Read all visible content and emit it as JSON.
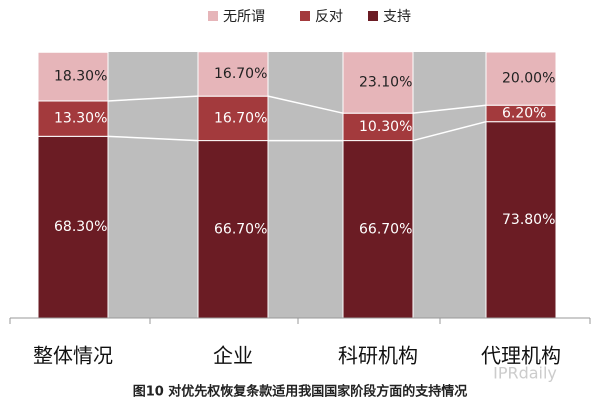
{
  "chart_data": {
    "type": "stacked_bar",
    "title": "图10 对优先权恢复条款适用我国国家阶段方面的支持情况",
    "watermark": "IPRdaily",
    "categories": [
      "整体情况",
      "企业",
      "科研机构",
      "代理机构"
    ],
    "series": [
      {
        "name": "支持",
        "color": "#6b1c24",
        "label_color": "#ffffff",
        "values": [
          68.3,
          66.7,
          66.7,
          73.8
        ],
        "value_labels": [
          "68.30%",
          "66.70%",
          "66.70%",
          "73.80%"
        ]
      },
      {
        "name": "反对",
        "color": "#a33a3d",
        "label_color": "#ffffff",
        "values": [
          13.3,
          16.7,
          10.3,
          6.2
        ],
        "value_labels": [
          "13.30%",
          "16.70%",
          "10.30%",
          "6.20%"
        ]
      },
      {
        "name": "无所谓",
        "color": "#e6b5b9",
        "label_color": "#222222",
        "values": [
          18.3,
          16.7,
          23.1,
          20.0
        ],
        "value_labels": [
          "18.30%",
          "16.70%",
          "23.10%",
          "20.00%"
        ]
      }
    ],
    "ylim": [
      0,
      100
    ]
  }
}
